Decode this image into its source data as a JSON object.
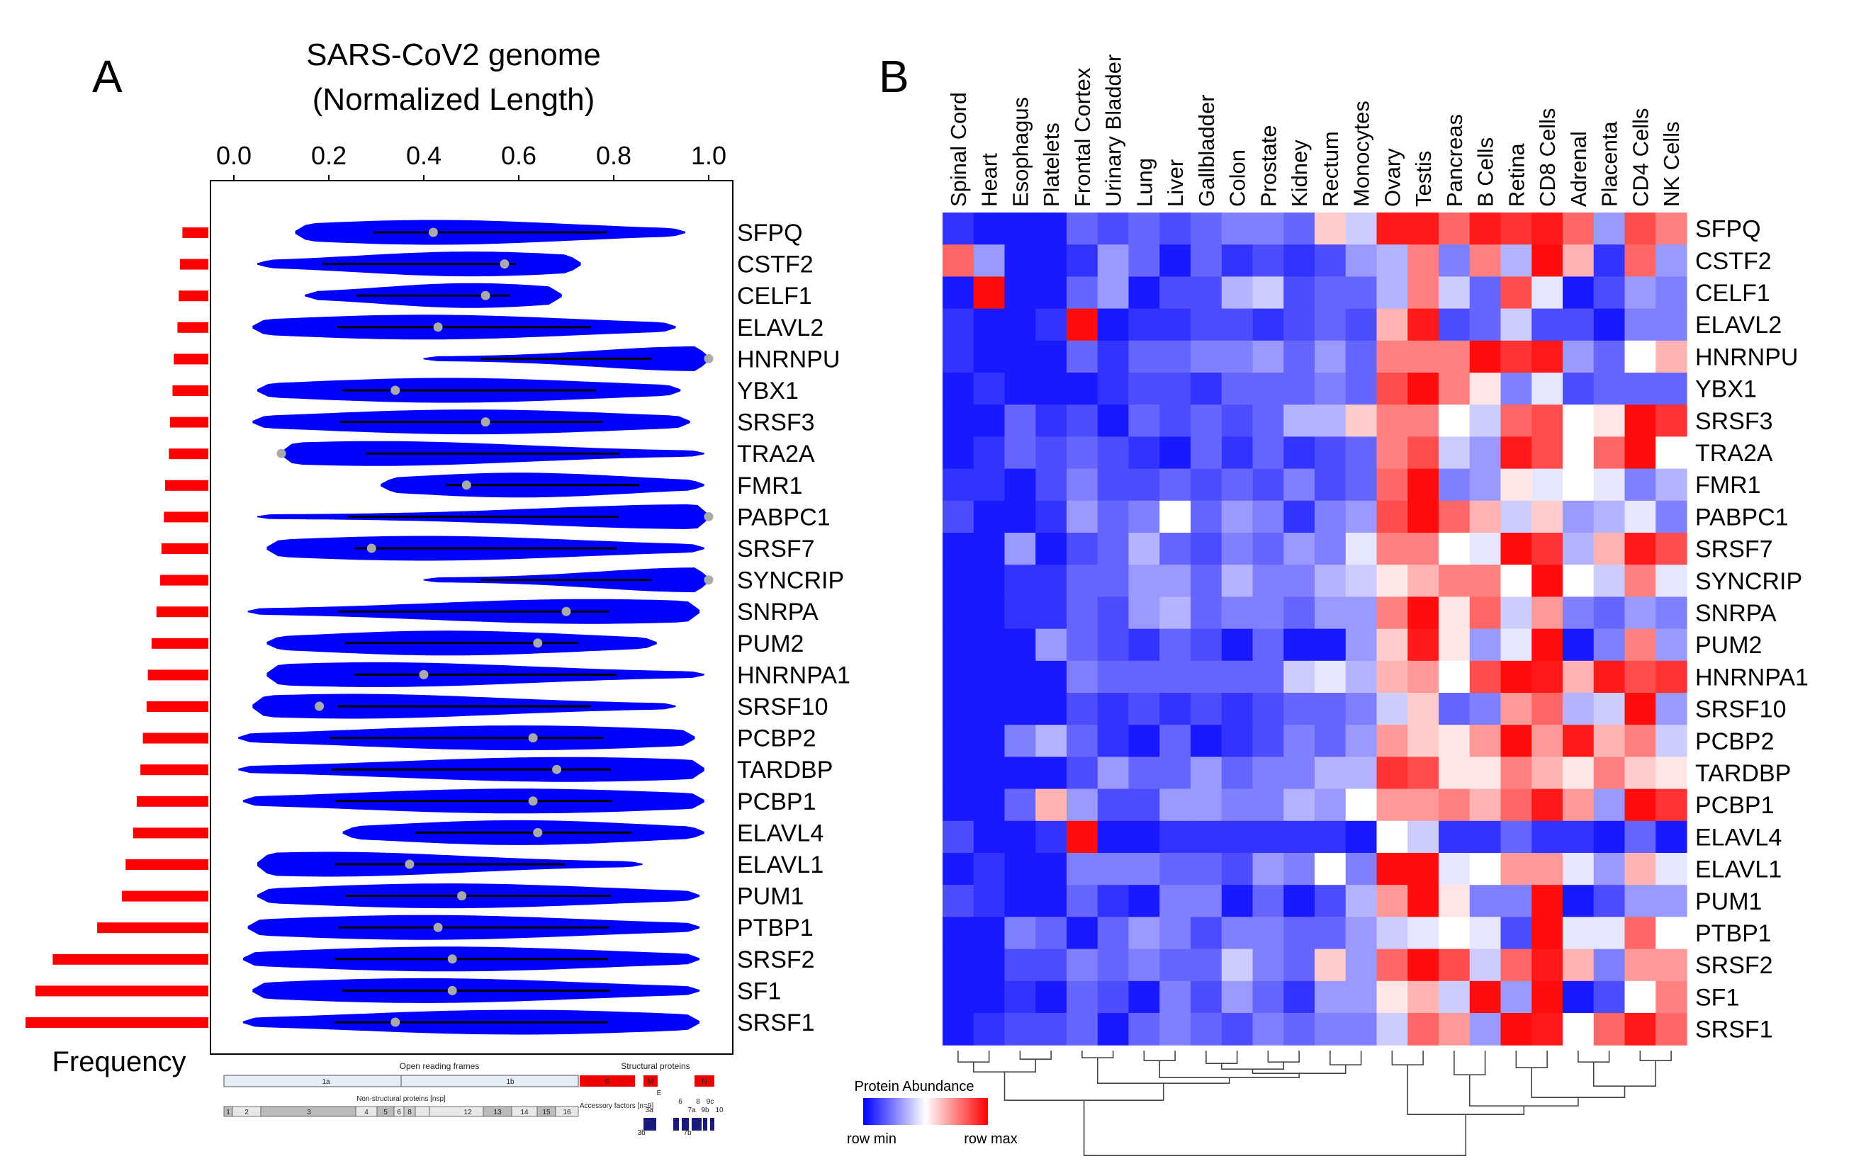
{
  "panel_a_letter": "A",
  "panel_b_letter": "B",
  "freq_label": "Frequency",
  "legend": {
    "title": "Protein Abundance",
    "min_label": "row min",
    "max_label": "row max",
    "min_color": "#0000ff",
    "mid_color": "#ffffff",
    "max_color": "#ff0000"
  },
  "genome_map": {
    "orf_title": "Open reading frames",
    "struct_title": "Structural proteins",
    "nsp_title": "Non-structural proteins [nsp]",
    "orf1a": "1a",
    "orf1b": "1b",
    "s_label": "S",
    "e_label": "E",
    "m_label": "M",
    "n_label": "N",
    "acc_title": "Accessory factors [n=9]",
    "nsp_numbers": [
      "1",
      "2",
      "3",
      "4",
      "5",
      "6",
      "8",
      "12",
      "13",
      "14",
      "15",
      "16"
    ],
    "acc_labels": [
      "3a",
      "3b",
      "6",
      "7a",
      "7b",
      "8",
      "9b",
      "9c",
      "10"
    ]
  },
  "chart_data": [
    {
      "type": "violin",
      "title": "SARS-CoV2 genome (Normalized Length)",
      "title_lines": [
        "SARS-CoV2 genome",
        "(Normalized Length)"
      ],
      "xlim": [
        0,
        1
      ],
      "x_ticks": [
        "0.0",
        "0.2",
        "0.4",
        "0.6",
        "0.8",
        "1.0"
      ],
      "colors": {
        "violin": "#0000ff",
        "median_dot": "#aaaaaa",
        "frequency_bar": "#ff0000"
      },
      "genes": [
        "SFPQ",
        "CSTF2",
        "CELF1",
        "ELAVL2",
        "HNRNPU",
        "YBX1",
        "SRSF3",
        "TRA2A",
        "FMR1",
        "PABPC1",
        "SRSF7",
        "SYNCRIP",
        "SNRPA",
        "PUM2",
        "HNRNPA1",
        "SRSF10",
        "PCBP2",
        "TARDBP",
        "PCBP1",
        "ELAVL4",
        "ELAVL1",
        "PUM1",
        "PTBP1",
        "SRSF2",
        "SF1",
        "SRSF1"
      ],
      "frequency": [
        21,
        23,
        24,
        25,
        28,
        29,
        31,
        32,
        35,
        36,
        38,
        39,
        42,
        46,
        49,
        50,
        53,
        55,
        58,
        61,
        67,
        70,
        90,
        126,
        140,
        148
      ],
      "median": [
        0.42,
        0.57,
        0.53,
        0.43,
        1.0,
        0.34,
        0.53,
        0.1,
        0.49,
        1.0,
        0.29,
        1.0,
        0.7,
        0.64,
        0.4,
        0.18,
        0.63,
        0.68,
        0.63,
        0.64,
        0.37,
        0.48,
        0.43,
        0.46,
        0.46,
        0.34
      ],
      "range": [
        [
          0.13,
          0.95
        ],
        [
          0.05,
          0.73
        ],
        [
          0.15,
          0.69
        ],
        [
          0.04,
          0.93
        ],
        [
          0.4,
          1.0
        ],
        [
          0.05,
          0.94
        ],
        [
          0.04,
          0.96
        ],
        [
          0.1,
          0.99
        ],
        [
          0.31,
          0.99
        ],
        [
          0.05,
          1.0
        ],
        [
          0.07,
          0.99
        ],
        [
          0.4,
          1.0
        ],
        [
          0.03,
          0.98
        ],
        [
          0.07,
          0.89
        ],
        [
          0.07,
          0.99
        ],
        [
          0.04,
          0.93
        ],
        [
          0.01,
          0.97
        ],
        [
          0.01,
          0.99
        ],
        [
          0.02,
          0.99
        ],
        [
          0.23,
          0.99
        ],
        [
          0.05,
          0.86
        ],
        [
          0.05,
          0.98
        ],
        [
          0.03,
          0.98
        ],
        [
          0.02,
          0.98
        ],
        [
          0.04,
          0.98
        ],
        [
          0.02,
          0.98
        ]
      ],
      "peak": [
        0.42,
        0.5,
        0.5,
        0.4,
        0.98,
        0.45,
        0.5,
        0.3,
        0.6,
        0.98,
        0.4,
        0.98,
        0.75,
        0.45,
        0.3,
        0.25,
        0.6,
        0.7,
        0.6,
        0.6,
        0.2,
        0.45,
        0.4,
        0.45,
        0.4,
        0.6
      ]
    },
    {
      "type": "heatmap",
      "columns": [
        "Spinal Cord",
        "Heart",
        "Esophagus",
        "Platelets",
        "Frontal Cortex",
        "Urinary Bladder",
        "Lung",
        "Liver",
        "Gallbladder",
        "Colon",
        "Prostate",
        "Kidney",
        "Rectum",
        "Monocytes",
        "Ovary",
        "Testis",
        "Pancreas",
        "B Cells",
        "Retina",
        "CD8 Cells",
        "Adrenal",
        "Placenta",
        "CD4 Cells",
        "NK Cells"
      ],
      "rows": [
        "SFPQ",
        "CSTF2",
        "CELF1",
        "ELAVL2",
        "HNRNPU",
        "YBX1",
        "SRSF3",
        "TRA2A",
        "FMR1",
        "PABPC1",
        "SRSF7",
        "SYNCRIP",
        "SNRPA",
        "PUM2",
        "HNRNPA1",
        "SRSF10",
        "PCBP2",
        "TARDBP",
        "PCBP1",
        "ELAVL4",
        "ELAVL1",
        "PUM1",
        "PTBP1",
        "SRSF2",
        "SF1",
        "SRSF1"
      ],
      "scale": "row-normalized, -1 = row min (blue), 0 = white, 1 = row max (red)",
      "values": [
        [
          -0.8,
          -0.9,
          -0.9,
          -0.9,
          -0.6,
          -0.7,
          -0.6,
          -0.7,
          -0.6,
          -0.5,
          -0.5,
          -0.6,
          0.2,
          -0.2,
          0.9,
          0.9,
          0.6,
          0.9,
          0.8,
          0.9,
          0.6,
          -0.4,
          0.7,
          0.5
        ],
        [
          0.6,
          -0.4,
          -0.9,
          -0.9,
          -0.8,
          -0.4,
          -0.6,
          -0.9,
          -0.6,
          -0.8,
          -0.7,
          -0.8,
          -0.7,
          -0.4,
          -0.3,
          0.5,
          -0.5,
          0.5,
          -0.3,
          0.95,
          0.3,
          -0.8,
          0.6,
          -0.4
        ],
        [
          -0.9,
          0.95,
          -0.9,
          -0.9,
          -0.6,
          -0.4,
          -0.9,
          -0.7,
          -0.7,
          -0.3,
          -0.2,
          -0.7,
          -0.6,
          -0.6,
          -0.3,
          0.5,
          -0.2,
          -0.6,
          0.7,
          -0.1,
          -0.9,
          -0.7,
          -0.4,
          -0.5
        ],
        [
          -0.8,
          -0.9,
          -0.9,
          -0.8,
          0.95,
          -0.9,
          -0.8,
          -0.8,
          -0.7,
          -0.7,
          -0.8,
          -0.7,
          -0.6,
          -0.7,
          0.3,
          0.9,
          -0.7,
          -0.6,
          -0.2,
          -0.7,
          -0.7,
          -0.9,
          -0.5,
          -0.5
        ],
        [
          -0.8,
          -0.9,
          -0.9,
          -0.9,
          -0.6,
          -0.8,
          -0.6,
          -0.6,
          -0.5,
          -0.5,
          -0.4,
          -0.6,
          -0.4,
          -0.6,
          0.5,
          0.5,
          0.5,
          0.95,
          0.8,
          0.9,
          -0.4,
          -0.6,
          0.0,
          0.3
        ],
        [
          -0.9,
          -0.8,
          -0.9,
          -0.9,
          -0.9,
          -0.8,
          -0.7,
          -0.7,
          -0.8,
          -0.6,
          -0.6,
          -0.6,
          -0.5,
          -0.6,
          0.7,
          0.95,
          0.5,
          0.1,
          -0.5,
          -0.1,
          -0.7,
          -0.6,
          -0.6,
          -0.6
        ],
        [
          -0.9,
          -0.9,
          -0.6,
          -0.8,
          -0.7,
          -0.9,
          -0.6,
          -0.7,
          -0.6,
          -0.7,
          -0.6,
          -0.3,
          -0.3,
          0.2,
          0.5,
          0.5,
          0.0,
          -0.2,
          0.6,
          0.7,
          0.0,
          0.1,
          0.95,
          0.8
        ],
        [
          -0.9,
          -0.8,
          -0.6,
          -0.7,
          -0.6,
          -0.7,
          -0.8,
          -0.9,
          -0.6,
          -0.8,
          -0.6,
          -0.8,
          -0.7,
          -0.6,
          0.5,
          0.7,
          -0.2,
          -0.4,
          0.9,
          0.7,
          0.0,
          0.6,
          0.95,
          0.0
        ],
        [
          -0.8,
          -0.8,
          -0.9,
          -0.7,
          -0.5,
          -0.7,
          -0.7,
          -0.6,
          -0.7,
          -0.6,
          -0.7,
          -0.5,
          -0.7,
          -0.6,
          0.6,
          0.95,
          -0.5,
          -0.4,
          0.1,
          -0.1,
          0.0,
          -0.1,
          -0.5,
          -0.3
        ],
        [
          -0.7,
          -0.9,
          -0.9,
          -0.8,
          -0.4,
          -0.6,
          -0.5,
          0.0,
          -0.6,
          -0.4,
          -0.5,
          -0.8,
          -0.5,
          -0.4,
          0.7,
          0.95,
          0.6,
          0.3,
          -0.2,
          0.2,
          -0.4,
          -0.3,
          -0.1,
          -0.5
        ],
        [
          -0.9,
          -0.9,
          -0.4,
          -0.9,
          -0.7,
          -0.6,
          -0.3,
          -0.6,
          -0.7,
          -0.5,
          -0.6,
          -0.4,
          -0.5,
          -0.1,
          0.5,
          0.5,
          0.0,
          -0.1,
          0.95,
          0.8,
          -0.3,
          0.3,
          0.9,
          0.7
        ],
        [
          -0.9,
          -0.9,
          -0.8,
          -0.8,
          -0.6,
          -0.6,
          -0.4,
          -0.4,
          -0.6,
          -0.3,
          -0.5,
          -0.5,
          -0.3,
          -0.2,
          0.1,
          0.3,
          0.5,
          0.5,
          0.0,
          0.95,
          0.0,
          -0.2,
          0.5,
          -0.1
        ],
        [
          -0.9,
          -0.9,
          -0.8,
          -0.8,
          -0.6,
          -0.7,
          -0.4,
          -0.3,
          -0.6,
          -0.5,
          -0.5,
          -0.6,
          -0.4,
          -0.4,
          0.5,
          0.95,
          0.1,
          0.6,
          -0.2,
          0.4,
          -0.5,
          -0.6,
          -0.4,
          -0.5
        ],
        [
          -0.9,
          -0.9,
          -0.9,
          -0.4,
          -0.6,
          -0.7,
          -0.8,
          -0.6,
          -0.7,
          -0.9,
          -0.6,
          -0.9,
          -0.9,
          -0.4,
          0.2,
          0.9,
          0.1,
          -0.4,
          -0.1,
          0.95,
          -0.9,
          -0.5,
          0.5,
          -0.4
        ],
        [
          -0.9,
          -0.9,
          -0.9,
          -0.9,
          -0.5,
          -0.6,
          -0.6,
          -0.6,
          -0.6,
          -0.6,
          -0.6,
          -0.2,
          -0.1,
          -0.3,
          0.3,
          0.4,
          0.0,
          0.7,
          0.95,
          0.9,
          0.3,
          0.9,
          0.7,
          0.8
        ],
        [
          -0.9,
          -0.9,
          -0.9,
          -0.9,
          -0.7,
          -0.8,
          -0.7,
          -0.8,
          -0.7,
          -0.8,
          -0.7,
          -0.6,
          -0.6,
          -0.5,
          -0.2,
          0.2,
          -0.6,
          -0.5,
          0.4,
          0.6,
          -0.3,
          -0.2,
          0.95,
          -0.4
        ],
        [
          -0.9,
          -0.9,
          -0.5,
          -0.3,
          -0.6,
          -0.8,
          -0.9,
          -0.6,
          -0.9,
          -0.8,
          -0.7,
          -0.5,
          -0.6,
          -0.4,
          0.4,
          0.2,
          0.1,
          0.4,
          0.95,
          0.4,
          0.9,
          0.3,
          0.5,
          -0.2
        ],
        [
          -0.9,
          -0.9,
          -0.9,
          -0.9,
          -0.7,
          -0.4,
          -0.6,
          -0.6,
          -0.4,
          -0.6,
          -0.5,
          -0.5,
          -0.3,
          -0.3,
          0.8,
          0.7,
          0.1,
          0.1,
          0.5,
          0.3,
          0.1,
          0.5,
          0.2,
          0.1
        ],
        [
          -0.9,
          -0.9,
          -0.6,
          0.3,
          -0.4,
          -0.7,
          -0.7,
          -0.4,
          -0.4,
          -0.5,
          -0.5,
          -0.3,
          -0.4,
          0.0,
          0.4,
          0.4,
          0.5,
          0.3,
          0.6,
          0.9,
          0.4,
          -0.4,
          0.95,
          0.8
        ],
        [
          -0.7,
          -0.9,
          -0.9,
          -0.8,
          0.95,
          -0.9,
          -0.9,
          -0.8,
          -0.8,
          -0.8,
          -0.8,
          -0.8,
          -0.8,
          -0.9,
          0.0,
          -0.2,
          -0.8,
          -0.8,
          -0.6,
          -0.8,
          -0.8,
          -0.9,
          -0.6,
          -0.9
        ],
        [
          -0.9,
          -0.8,
          -0.9,
          -0.9,
          -0.5,
          -0.5,
          -0.5,
          -0.6,
          -0.6,
          -0.7,
          -0.4,
          -0.5,
          0.0,
          -0.5,
          0.95,
          0.95,
          -0.1,
          0.0,
          0.4,
          0.4,
          -0.1,
          -0.4,
          0.3,
          -0.1
        ],
        [
          -0.7,
          -0.8,
          -0.9,
          -0.9,
          -0.6,
          -0.8,
          -0.9,
          -0.5,
          -0.5,
          -0.9,
          -0.6,
          -0.9,
          -0.7,
          -0.3,
          0.4,
          0.95,
          0.1,
          -0.5,
          -0.5,
          0.95,
          -0.9,
          -0.7,
          -0.4,
          -0.4
        ],
        [
          -0.9,
          -0.9,
          -0.5,
          -0.6,
          -0.9,
          -0.6,
          -0.4,
          -0.5,
          -0.7,
          -0.5,
          -0.5,
          -0.6,
          -0.6,
          -0.4,
          -0.2,
          -0.1,
          0.0,
          -0.1,
          -0.7,
          0.95,
          -0.1,
          -0.1,
          0.6,
          0.0
        ],
        [
          -0.9,
          -0.9,
          -0.7,
          -0.7,
          -0.5,
          -0.6,
          -0.5,
          -0.6,
          -0.6,
          -0.2,
          -0.5,
          -0.6,
          0.2,
          -0.4,
          0.6,
          0.95,
          0.7,
          -0.2,
          0.6,
          0.9,
          0.3,
          -0.5,
          0.4,
          0.4
        ],
        [
          -0.9,
          -0.9,
          -0.8,
          -0.9,
          -0.6,
          -0.7,
          -0.9,
          -0.5,
          -0.7,
          -0.4,
          -0.6,
          -0.8,
          -0.4,
          -0.4,
          0.1,
          0.3,
          -0.2,
          0.95,
          -0.4,
          0.95,
          -0.9,
          -0.7,
          0.0,
          0.5
        ],
        [
          -0.9,
          -0.8,
          -0.7,
          -0.7,
          -0.6,
          -0.9,
          -0.6,
          -0.5,
          -0.6,
          -0.7,
          -0.5,
          -0.6,
          -0.5,
          -0.5,
          -0.2,
          0.6,
          0.4,
          -0.4,
          0.95,
          0.9,
          0.0,
          0.6,
          0.9,
          0.6
        ]
      ]
    }
  ]
}
